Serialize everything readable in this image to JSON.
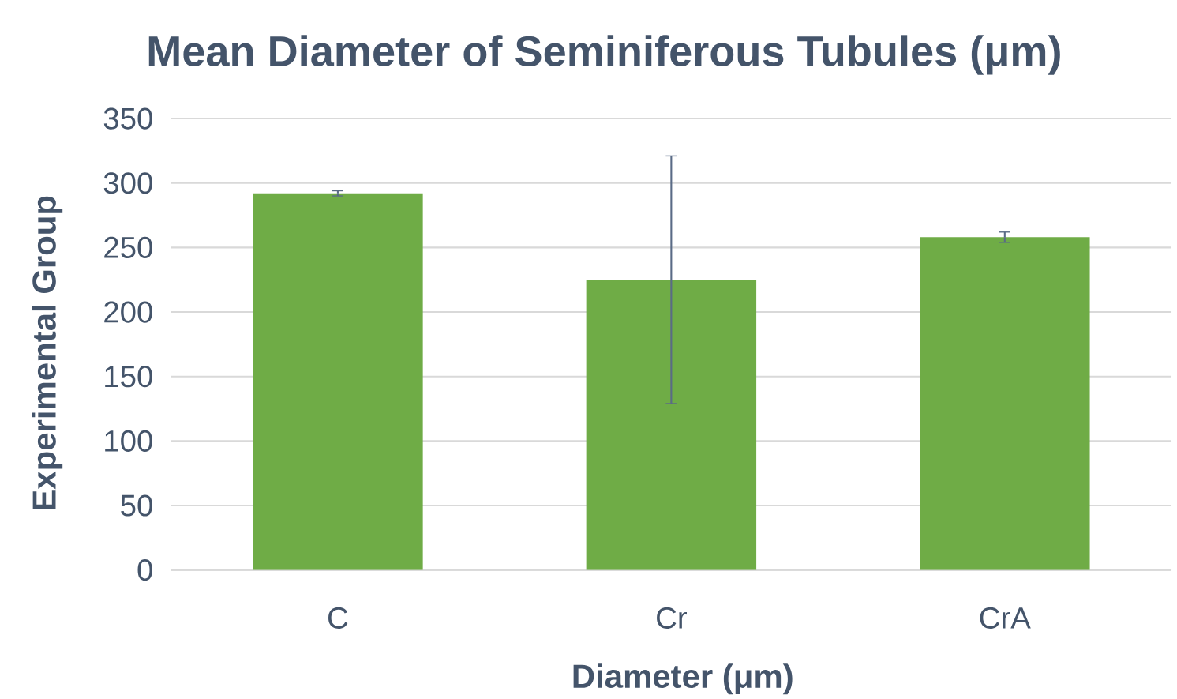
{
  "chart_data": {
    "type": "bar",
    "title": "Mean Diameter of Seminiferous Tubules (μm)",
    "xlabel": "Diameter (μm)",
    "ylabel": "Experimental Group",
    "categories": [
      "C",
      "Cr",
      "CrA"
    ],
    "values": [
      292,
      225,
      258
    ],
    "errors": [
      2,
      96,
      4
    ],
    "color": "#6fac46",
    "ylim": [
      0,
      350
    ],
    "yticks": [
      0,
      50,
      100,
      150,
      200,
      250,
      300,
      350
    ],
    "grid": "y"
  }
}
